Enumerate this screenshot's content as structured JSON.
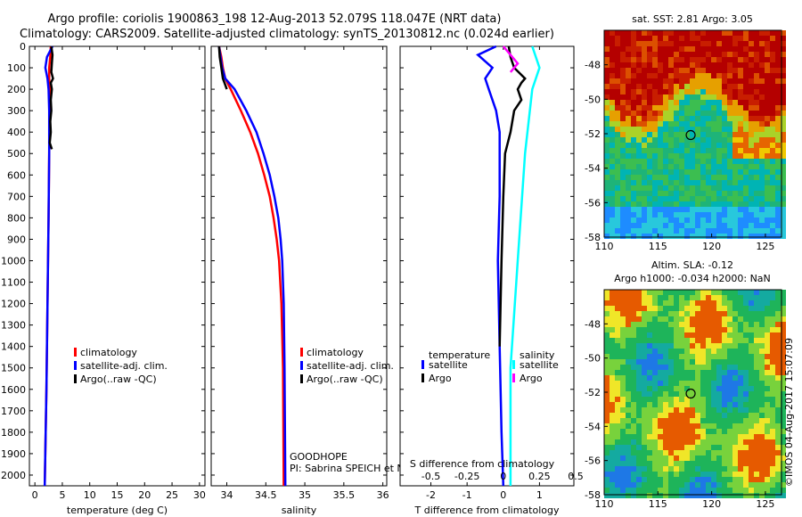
{
  "title": {
    "line1": "Argo profile: coriolis 1900863_198 12-Aug-2013 52.079S 118.047E (NRT data)",
    "line2": "Climatology: CARS2009. Satellite-adjusted climatology: synTS_20130812.nc (0.024d earlier)"
  },
  "depth_ticks": [
    "0",
    "100",
    "200",
    "300",
    "400",
    "500",
    "600",
    "700",
    "800",
    "900",
    "1000",
    "1100",
    "1200",
    "1300",
    "1400",
    "1500",
    "1600",
    "1700",
    "1800",
    "1900",
    "2000"
  ],
  "colors": {
    "climatology": "#ff0000",
    "satellite": "#0000ff",
    "argo": "#000000",
    "t_sat": "#00ffff",
    "s_argo": "#ff00ff"
  },
  "chart_data": [
    {
      "type": "line",
      "xlabel": "temperature (deg C)",
      "ylabel": "",
      "xlim": [
        -1,
        31
      ],
      "ylim": [
        2050,
        0
      ],
      "xticks": [
        "0",
        "5",
        "10",
        "15",
        "20",
        "25",
        "30"
      ],
      "legend": [
        "climatology",
        "satellite-adj. clim.",
        "Argo(..raw -QC)"
      ],
      "series": [
        {
          "name": "climatology",
          "y": [
            0,
            50,
            100,
            150,
            200,
            300,
            500,
            800,
            1200,
            1600,
            2050
          ],
          "x": [
            2.9,
            2.8,
            2.6,
            2.6,
            2.7,
            2.7,
            2.6,
            2.5,
            2.3,
            2.1,
            1.8
          ]
        },
        {
          "name": "satellite-adj. clim.",
          "y": [
            0,
            50,
            100,
            150,
            200,
            300,
            500,
            800,
            1200,
            1600,
            2050
          ],
          "x": [
            3.2,
            2.2,
            1.9,
            2.3,
            2.5,
            2.6,
            2.6,
            2.5,
            2.3,
            2.1,
            1.8
          ]
        },
        {
          "name": "Argo(..raw -QC)",
          "y": [
            0,
            40,
            80,
            120,
            150,
            170,
            200,
            250,
            300,
            350,
            400,
            450,
            480
          ],
          "x": [
            3.0,
            3.2,
            3.1,
            3.0,
            3.3,
            2.9,
            3.1,
            2.9,
            3.0,
            2.8,
            2.9,
            2.7,
            3.1
          ]
        }
      ]
    },
    {
      "type": "line",
      "xlabel": "salinity",
      "ylabel": "",
      "xlim": [
        33.8,
        36.05
      ],
      "ylim": [
        2050,
        0
      ],
      "xticks": [
        "34",
        "34.5",
        "35",
        "35.5",
        "36"
      ],
      "legend": [
        "climatology",
        "satellite-adj. clim.",
        "Argo(..raw -QC)"
      ],
      "annotation": [
        "GOODHOPE",
        "PI: Sabrina SPEICH et Michel ARHAN"
      ],
      "series": [
        {
          "name": "climatology",
          "y": [
            0,
            50,
            100,
            150,
            200,
            300,
            400,
            500,
            600,
            700,
            800,
            900,
            1000,
            1200,
            1500,
            2050
          ],
          "x": [
            33.9,
            33.93,
            33.95,
            33.98,
            34.05,
            34.18,
            34.3,
            34.4,
            34.48,
            34.55,
            34.6,
            34.64,
            34.67,
            34.7,
            34.72,
            34.73
          ]
        },
        {
          "name": "satellite-adj. clim.",
          "y": [
            0,
            50,
            100,
            150,
            200,
            300,
            400,
            500,
            600,
            700,
            800,
            900,
            1000,
            1200,
            1500,
            2050
          ],
          "x": [
            33.9,
            33.92,
            33.94,
            33.98,
            34.1,
            34.25,
            34.38,
            34.47,
            34.55,
            34.61,
            34.66,
            34.69,
            34.71,
            34.73,
            34.74,
            34.75
          ]
        },
        {
          "name": "Argo(..raw -QC)",
          "y": [
            0,
            50,
            100,
            150,
            180,
            200
          ],
          "x": [
            33.9,
            33.91,
            33.93,
            33.95,
            33.98,
            34.0
          ]
        }
      ]
    },
    {
      "type": "line",
      "xlabel": "T difference from climatology",
      "x2label": "S difference from climatology",
      "xlim": [
        -2.85,
        1.95
      ],
      "ylim": [
        2050,
        0
      ],
      "xticks": [
        "-2",
        "-1",
        "0",
        "1"
      ],
      "x2ticks": [
        "-0.5",
        "-0.25",
        "0",
        "0.25",
        "0.5"
      ],
      "legend_left_title": "temperature",
      "legend_right_title": "salinity",
      "legend": [
        "satellite",
        "Argo",
        "satellite",
        "Argo"
      ],
      "series": [
        {
          "name": "satellite",
          "y": [
            0,
            40,
            100,
            150,
            200,
            300,
            400,
            500,
            700,
            1000,
            1400,
            1800,
            2050
          ],
          "x": [
            -0.2,
            -0.7,
            -0.3,
            -0.5,
            -0.4,
            -0.2,
            -0.1,
            -0.1,
            -0.1,
            -0.15,
            -0.1,
            -0.05,
            0.0
          ]
        },
        {
          "name": "Argo",
          "y": [
            0,
            50,
            100,
            150,
            170,
            200,
            250,
            300,
            400,
            500,
            700,
            1000,
            1400
          ],
          "x": [
            0.15,
            0.2,
            0.3,
            0.6,
            0.5,
            0.4,
            0.5,
            0.3,
            0.2,
            0.05,
            0.0,
            -0.05,
            -0.1
          ]
        },
        {
          "name": "satellite",
          "y": [
            0,
            100,
            200,
            500,
            1000,
            1500,
            2050
          ],
          "x": [
            0.2,
            0.25,
            0.2,
            0.15,
            0.1,
            0.05,
            0.05
          ]
        },
        {
          "name": "Argo",
          "y": [
            0,
            40,
            80,
            120
          ],
          "x": [
            0.0,
            0.05,
            0.1,
            0.05
          ]
        }
      ]
    },
    {
      "type": "heatmap",
      "title": "sat. SST: 2.81  Argo: 3.05",
      "xlim": [
        110,
        126.5
      ],
      "ylim": [
        -58,
        -46
      ],
      "xticks": [
        "110",
        "115",
        "120",
        "125"
      ],
      "yticks": [
        "-48",
        "-50",
        "-52",
        "-54",
        "-56",
        "-58"
      ],
      "marker": [
        118.047,
        -52.079
      ]
    },
    {
      "type": "heatmap",
      "title": "Altim. SLA: -0.12",
      "subtitle": "Argo h1000: -0.034 h2000: NaN",
      "xlim": [
        110,
        126.5
      ],
      "ylim": [
        -58,
        -46
      ],
      "xticks": [
        "110",
        "115",
        "120",
        "125"
      ],
      "yticks": [
        "-48",
        "-50",
        "-52",
        "-54",
        "-56",
        "-58"
      ],
      "marker": [
        118.047,
        -52.079
      ]
    }
  ],
  "credit": "©IMOS 04-Aug-2017 15:07:09"
}
